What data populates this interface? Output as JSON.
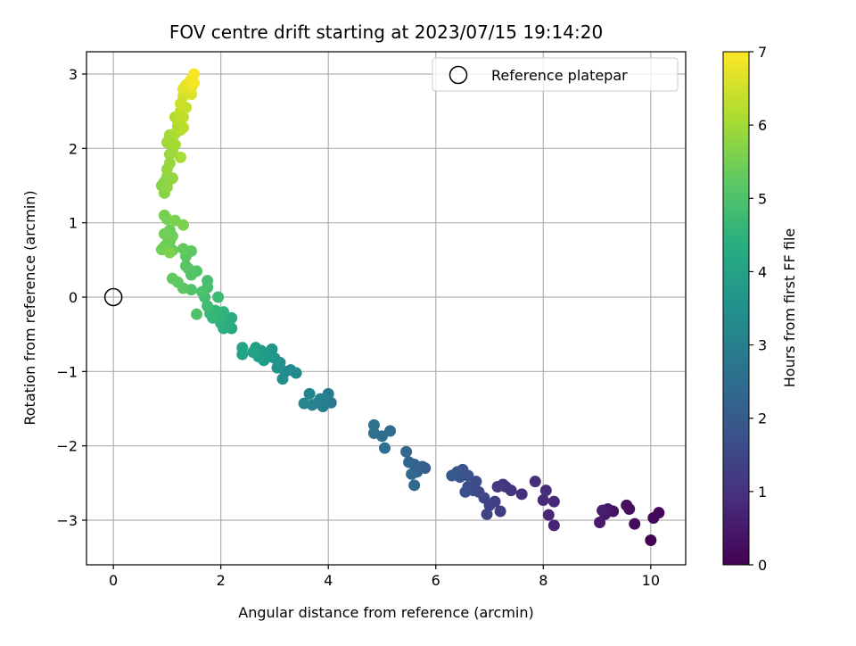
{
  "chart_data": {
    "type": "scatter",
    "title": "FOV centre drift starting at 2023/07/15 19:14:20",
    "xlabel": "Angular distance from reference (arcmin)",
    "ylabel": "Rotation from reference (arcmin)",
    "xlim": [
      -0.5,
      10.65
    ],
    "ylim": [
      -3.6,
      3.3
    ],
    "xticks": [
      0,
      2,
      4,
      6,
      8,
      10
    ],
    "yticks": [
      -3,
      -2,
      -1,
      0,
      1,
      2,
      3
    ],
    "grid": true,
    "legend": {
      "placement": "top-right",
      "entries": [
        "Reference platepar"
      ]
    },
    "reference_point": {
      "name": "Reference platepar",
      "x": 0,
      "y": 0
    },
    "colorbar": {
      "label": "Hours from first FF file",
      "range": [
        0,
        7
      ],
      "ticks": [
        0,
        1,
        2,
        3,
        4,
        5,
        6,
        7
      ],
      "colormap": "viridis"
    },
    "points": [
      {
        "x": 10.0,
        "y": -3.27,
        "t": 0.05
      },
      {
        "x": 10.15,
        "y": -2.9,
        "t": 0.1
      },
      {
        "x": 10.05,
        "y": -2.97,
        "t": 0.15
      },
      {
        "x": 9.7,
        "y": -3.05,
        "t": 0.2
      },
      {
        "x": 9.6,
        "y": -2.85,
        "t": 0.25
      },
      {
        "x": 9.55,
        "y": -2.8,
        "t": 0.3
      },
      {
        "x": 9.3,
        "y": -2.88,
        "t": 0.35
      },
      {
        "x": 9.2,
        "y": -2.85,
        "t": 0.4
      },
      {
        "x": 9.15,
        "y": -2.92,
        "t": 0.45
      },
      {
        "x": 9.05,
        "y": -3.03,
        "t": 0.5
      },
      {
        "x": 9.1,
        "y": -2.87,
        "t": 0.55
      },
      {
        "x": 8.2,
        "y": -3.07,
        "t": 0.7
      },
      {
        "x": 8.1,
        "y": -2.93,
        "t": 0.75
      },
      {
        "x": 8.2,
        "y": -2.75,
        "t": 0.8
      },
      {
        "x": 8.0,
        "y": -2.73,
        "t": 0.85
      },
      {
        "x": 8.05,
        "y": -2.6,
        "t": 0.9
      },
      {
        "x": 7.85,
        "y": -2.48,
        "t": 0.95
      },
      {
        "x": 7.6,
        "y": -2.65,
        "t": 1.0
      },
      {
        "x": 7.4,
        "y": -2.6,
        "t": 1.05
      },
      {
        "x": 7.3,
        "y": -2.55,
        "t": 1.1
      },
      {
        "x": 7.25,
        "y": -2.52,
        "t": 1.15
      },
      {
        "x": 7.15,
        "y": -2.55,
        "t": 1.2
      },
      {
        "x": 7.2,
        "y": -2.88,
        "t": 1.25
      },
      {
        "x": 7.1,
        "y": -2.75,
        "t": 1.3
      },
      {
        "x": 7.0,
        "y": -2.8,
        "t": 1.35
      },
      {
        "x": 6.95,
        "y": -2.92,
        "t": 1.4
      },
      {
        "x": 6.9,
        "y": -2.7,
        "t": 1.45
      },
      {
        "x": 6.8,
        "y": -2.62,
        "t": 1.5
      },
      {
        "x": 6.75,
        "y": -2.48,
        "t": 1.55
      },
      {
        "x": 6.7,
        "y": -2.6,
        "t": 1.6
      },
      {
        "x": 6.6,
        "y": -2.55,
        "t": 1.65
      },
      {
        "x": 6.55,
        "y": -2.62,
        "t": 1.7
      },
      {
        "x": 6.6,
        "y": -2.4,
        "t": 1.75
      },
      {
        "x": 6.5,
        "y": -2.32,
        "t": 1.8
      },
      {
        "x": 6.45,
        "y": -2.42,
        "t": 1.85
      },
      {
        "x": 6.4,
        "y": -2.35,
        "t": 1.9
      },
      {
        "x": 6.3,
        "y": -2.4,
        "t": 1.95
      },
      {
        "x": 5.8,
        "y": -2.3,
        "t": 2.05
      },
      {
        "x": 5.75,
        "y": -2.28,
        "t": 2.1
      },
      {
        "x": 5.6,
        "y": -2.25,
        "t": 2.15
      },
      {
        "x": 5.65,
        "y": -2.35,
        "t": 2.2
      },
      {
        "x": 5.5,
        "y": -2.22,
        "t": 2.25
      },
      {
        "x": 5.45,
        "y": -2.08,
        "t": 2.3
      },
      {
        "x": 5.55,
        "y": -2.38,
        "t": 2.35
      },
      {
        "x": 5.6,
        "y": -2.53,
        "t": 2.4
      },
      {
        "x": 5.15,
        "y": -1.8,
        "t": 2.45
      },
      {
        "x": 5.05,
        "y": -2.03,
        "t": 2.5
      },
      {
        "x": 5.0,
        "y": -1.87,
        "t": 2.55
      },
      {
        "x": 4.85,
        "y": -1.83,
        "t": 2.6
      },
      {
        "x": 4.85,
        "y": -1.72,
        "t": 2.65
      },
      {
        "x": 4.05,
        "y": -1.42,
        "t": 2.85
      },
      {
        "x": 4.0,
        "y": -1.3,
        "t": 2.9
      },
      {
        "x": 3.95,
        "y": -1.38,
        "t": 2.95
      },
      {
        "x": 3.9,
        "y": -1.47,
        "t": 3.0
      },
      {
        "x": 3.85,
        "y": -1.37,
        "t": 3.05
      },
      {
        "x": 3.8,
        "y": -1.42,
        "t": 3.1
      },
      {
        "x": 3.7,
        "y": -1.45,
        "t": 3.15
      },
      {
        "x": 3.65,
        "y": -1.3,
        "t": 3.2
      },
      {
        "x": 3.55,
        "y": -1.43,
        "t": 3.25
      },
      {
        "x": 3.4,
        "y": -1.02,
        "t": 3.3
      },
      {
        "x": 3.3,
        "y": -0.98,
        "t": 3.35
      },
      {
        "x": 3.2,
        "y": -1.0,
        "t": 3.4
      },
      {
        "x": 3.15,
        "y": -1.1,
        "t": 3.45
      },
      {
        "x": 3.1,
        "y": -0.88,
        "t": 3.5
      },
      {
        "x": 3.05,
        "y": -0.95,
        "t": 3.55
      },
      {
        "x": 3.0,
        "y": -0.82,
        "t": 3.6
      },
      {
        "x": 2.95,
        "y": -0.7,
        "t": 3.65
      },
      {
        "x": 2.9,
        "y": -0.8,
        "t": 3.7
      },
      {
        "x": 2.85,
        "y": -0.76,
        "t": 3.75
      },
      {
        "x": 2.8,
        "y": -0.85,
        "t": 3.8
      },
      {
        "x": 2.75,
        "y": -0.72,
        "t": 3.85
      },
      {
        "x": 2.7,
        "y": -0.8,
        "t": 3.9
      },
      {
        "x": 2.65,
        "y": -0.68,
        "t": 3.95
      },
      {
        "x": 2.6,
        "y": -0.74,
        "t": 4.0
      },
      {
        "x": 2.4,
        "y": -0.77,
        "t": 4.05
      },
      {
        "x": 2.4,
        "y": -0.68,
        "t": 4.1
      },
      {
        "x": 2.2,
        "y": -0.42,
        "t": 4.2
      },
      {
        "x": 2.15,
        "y": -0.35,
        "t": 4.25
      },
      {
        "x": 2.2,
        "y": -0.28,
        "t": 4.3
      },
      {
        "x": 2.1,
        "y": -0.3,
        "t": 4.35
      },
      {
        "x": 2.05,
        "y": -0.42,
        "t": 4.4
      },
      {
        "x": 2.0,
        "y": -0.35,
        "t": 4.45
      },
      {
        "x": 2.05,
        "y": -0.2,
        "t": 4.5
      },
      {
        "x": 1.95,
        "y": -0.27,
        "t": 4.55
      },
      {
        "x": 1.9,
        "y": -0.18,
        "t": 4.6
      },
      {
        "x": 1.85,
        "y": -0.28,
        "t": 4.65
      },
      {
        "x": 1.8,
        "y": -0.22,
        "t": 4.7
      },
      {
        "x": 1.95,
        "y": 0.0,
        "t": 4.75
      },
      {
        "x": 1.75,
        "y": -0.12,
        "t": 4.8
      },
      {
        "x": 1.7,
        "y": 0.0,
        "t": 4.85
      },
      {
        "x": 1.75,
        "y": 0.13,
        "t": 4.9
      },
      {
        "x": 1.75,
        "y": 0.22,
        "t": 4.95
      },
      {
        "x": 1.65,
        "y": 0.07,
        "t": 5.0
      },
      {
        "x": 1.55,
        "y": -0.23,
        "t": 5.02
      },
      {
        "x": 1.45,
        "y": 0.1,
        "t": 5.05
      },
      {
        "x": 1.55,
        "y": 0.35,
        "t": 5.08
      },
      {
        "x": 1.45,
        "y": 0.3,
        "t": 5.1
      },
      {
        "x": 1.4,
        "y": 0.38,
        "t": 5.12
      },
      {
        "x": 1.35,
        "y": 0.42,
        "t": 5.15
      },
      {
        "x": 1.3,
        "y": 0.12,
        "t": 5.18
      },
      {
        "x": 1.35,
        "y": 0.55,
        "t": 5.2
      },
      {
        "x": 1.45,
        "y": 0.62,
        "t": 5.22
      },
      {
        "x": 1.2,
        "y": 0.2,
        "t": 5.25
      },
      {
        "x": 1.1,
        "y": 0.25,
        "t": 5.28
      },
      {
        "x": 1.1,
        "y": 0.63,
        "t": 5.3
      },
      {
        "x": 1.3,
        "y": 0.65,
        "t": 5.32
      },
      {
        "x": 1.05,
        "y": 0.75,
        "t": 5.35
      },
      {
        "x": 1.0,
        "y": 0.72,
        "t": 5.38
      },
      {
        "x": 1.05,
        "y": 0.9,
        "t": 5.4
      },
      {
        "x": 0.95,
        "y": 0.68,
        "t": 5.42
      },
      {
        "x": 1.1,
        "y": 0.82,
        "t": 5.45
      },
      {
        "x": 0.9,
        "y": 0.64,
        "t": 5.48
      },
      {
        "x": 0.95,
        "y": 0.85,
        "t": 5.5
      },
      {
        "x": 1.0,
        "y": 1.05,
        "t": 5.52
      },
      {
        "x": 0.95,
        "y": 1.1,
        "t": 5.55
      },
      {
        "x": 1.15,
        "y": 1.03,
        "t": 5.58
      },
      {
        "x": 1.3,
        "y": 0.97,
        "t": 5.6
      },
      {
        "x": 1.05,
        "y": 0.6,
        "t": 5.62
      },
      {
        "x": 0.95,
        "y": 1.4,
        "t": 5.7
      },
      {
        "x": 0.9,
        "y": 1.5,
        "t": 5.72
      },
      {
        "x": 0.95,
        "y": 1.55,
        "t": 5.75
      },
      {
        "x": 1.0,
        "y": 1.48,
        "t": 5.78
      },
      {
        "x": 1.0,
        "y": 1.62,
        "t": 5.8
      },
      {
        "x": 1.05,
        "y": 1.58,
        "t": 5.82
      },
      {
        "x": 1.1,
        "y": 1.6,
        "t": 5.85
      },
      {
        "x": 1.0,
        "y": 1.72,
        "t": 5.88
      },
      {
        "x": 1.05,
        "y": 1.8,
        "t": 5.9
      },
      {
        "x": 1.05,
        "y": 1.92,
        "t": 5.92
      },
      {
        "x": 1.1,
        "y": 1.98,
        "t": 5.95
      },
      {
        "x": 1.0,
        "y": 2.08,
        "t": 5.98
      },
      {
        "x": 1.05,
        "y": 2.18,
        "t": 6.0
      },
      {
        "x": 1.1,
        "y": 2.1,
        "t": 6.02
      },
      {
        "x": 1.15,
        "y": 2.05,
        "t": 6.05
      },
      {
        "x": 1.25,
        "y": 1.88,
        "t": 6.08
      },
      {
        "x": 1.15,
        "y": 2.2,
        "t": 6.1
      },
      {
        "x": 1.2,
        "y": 2.3,
        "t": 6.12
      },
      {
        "x": 1.25,
        "y": 2.25,
        "t": 6.15
      },
      {
        "x": 1.15,
        "y": 2.42,
        "t": 6.18
      },
      {
        "x": 1.2,
        "y": 2.38,
        "t": 6.2
      },
      {
        "x": 1.3,
        "y": 2.28,
        "t": 6.25
      },
      {
        "x": 1.25,
        "y": 2.5,
        "t": 6.3
      },
      {
        "x": 1.3,
        "y": 2.42,
        "t": 6.35
      },
      {
        "x": 1.35,
        "y": 2.55,
        "t": 6.4
      },
      {
        "x": 1.25,
        "y": 2.6,
        "t": 6.45
      },
      {
        "x": 1.3,
        "y": 2.7,
        "t": 6.5
      },
      {
        "x": 1.35,
        "y": 2.75,
        "t": 6.55
      },
      {
        "x": 1.45,
        "y": 2.73,
        "t": 6.6
      },
      {
        "x": 1.3,
        "y": 2.8,
        "t": 6.65
      },
      {
        "x": 1.35,
        "y": 2.85,
        "t": 6.7
      },
      {
        "x": 1.4,
        "y": 2.88,
        "t": 6.75
      },
      {
        "x": 1.45,
        "y": 2.82,
        "t": 6.8
      },
      {
        "x": 1.45,
        "y": 2.93,
        "t": 6.85
      },
      {
        "x": 1.5,
        "y": 2.88,
        "t": 6.9
      },
      {
        "x": 1.5,
        "y": 3.0,
        "t": 6.95
      }
    ]
  }
}
